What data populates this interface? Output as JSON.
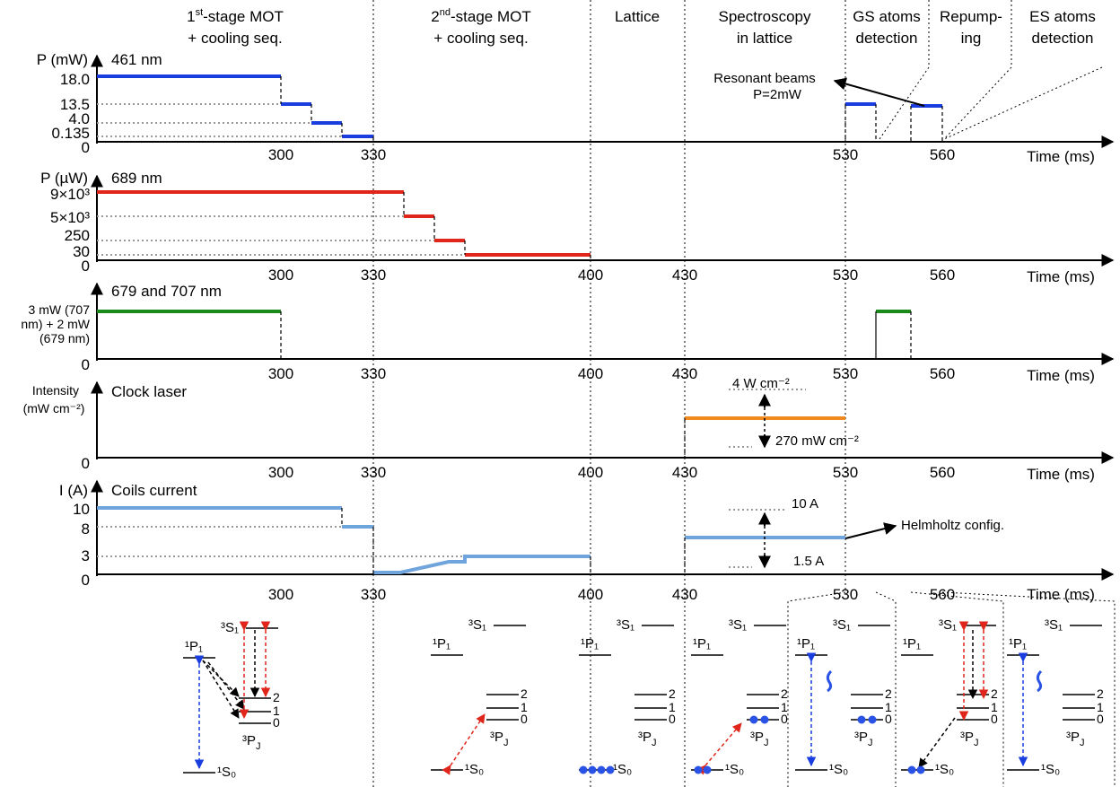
{
  "headers": [
    [
      "1st-stage MOT",
      "+ cooling seq."
    ],
    [
      "2nd-stage MOT",
      "+ cooling seq."
    ],
    [
      "Lattice"
    ],
    [
      "Spectroscopy",
      "in lattice"
    ],
    [
      "GS atoms",
      "detection"
    ],
    [
      "Repump-",
      "ing"
    ],
    [
      "ES atoms",
      "detection"
    ]
  ],
  "time_label": "Time (ms)",
  "x_ticks": [
    "300",
    "330",
    "400",
    "430",
    "530",
    "560"
  ],
  "panels": [
    {
      "title": "461 nm",
      "unit": "P (mW)",
      "levels": [
        "18.0",
        "13.5",
        "4.0",
        "0.135",
        "0"
      ],
      "annotation": [
        "Resonant beams",
        "P=2mW"
      ]
    },
    {
      "title": "689 nm",
      "unit": "P (µW)",
      "levels": [
        "9×10³",
        "5×10³",
        "250",
        "30",
        "0"
      ]
    },
    {
      "title": "679 and 707 nm",
      "unit": "",
      "levels": [
        "3 mW (707",
        "nm) + 2 mW",
        "(679 nm)",
        "0"
      ]
    },
    {
      "title": "Clock laser",
      "unit": "Intensity",
      "unit2": "(mW cm⁻²)",
      "levels": [
        "0"
      ],
      "annotation_top": "4 W cm⁻²",
      "annotation_bottom": "270 mW cm⁻²"
    },
    {
      "title": "Coils current",
      "unit": "I (A)",
      "levels": [
        "10",
        "8",
        "3",
        "0"
      ],
      "annotation_top": "10 A",
      "annotation_bottom": "1.5 A",
      "annotation_side": "Helmholtz config."
    }
  ],
  "levels_diagram": {
    "P1": "¹P₁",
    "S1": "³S₁",
    "S0": "¹S₀",
    "PJ": "³P",
    "PJsub": "J",
    "j_values": [
      "2",
      "1",
      "0"
    ]
  },
  "colors": {
    "blue_461": "#1a3de0",
    "red_689": "#e0261a",
    "green_679_707": "#1a8a1a",
    "orange_clock": "#f08a1e",
    "lightblue_coils": "#6fa5dc",
    "dashed_gray": "#999999"
  }
}
